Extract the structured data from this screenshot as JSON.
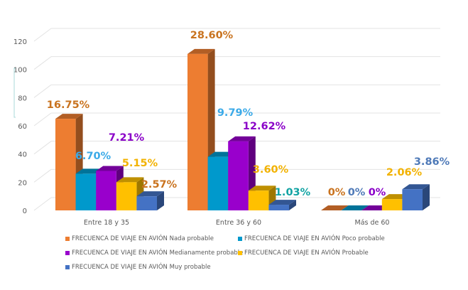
{
  "chart_data": {
    "type": "bar",
    "style": "3d-clustered-column",
    "categories": [
      "Entre 18 y 35",
      "Entre 36 y 60",
      "Más de 60"
    ],
    "ylim": [
      0,
      120
    ],
    "yticks": [
      "0",
      "20",
      "40",
      "60",
      "80",
      "100",
      "120"
    ],
    "grid": true,
    "legend_position": "bottom",
    "series": [
      {
        "name": "FRECUENCA DE VIAJE EN AVIÓN Nada probable",
        "color": "#ED7D31",
        "values": [
          65,
          111,
          0
        ],
        "labels": [
          "16.75%",
          "28.60%",
          "0%"
        ],
        "label_color": "#C9731F"
      },
      {
        "name": "FRECUENCA DE VIAJE EN AVIÓN Poco probable",
        "color": "#0099CC",
        "values": [
          26,
          38,
          0
        ],
        "labels": [
          "6.70%",
          "9.79%",
          "0%"
        ],
        "label_color": "#3BAAE8"
      },
      {
        "name": "FRECUENCA DE VIAJE EN AVIÓN Medianamente probable",
        "color": "#9900CC",
        "values": [
          28,
          49,
          0
        ],
        "labels": [
          "7.21%",
          "12.62%",
          "0%"
        ],
        "label_color": "#8A00C8"
      },
      {
        "name": "FRECUENCA DE VIAJE EN AVIÓN Probable",
        "color": "#FFC000",
        "values": [
          20,
          14,
          8
        ],
        "labels": [
          "5.15%",
          "3.60%",
          "2.06%"
        ],
        "label_color": "#F2B200"
      },
      {
        "name": "FRECUENCA DE VIAJE EN AVIÓN Muy probable",
        "color": "#4472C4",
        "values": [
          10,
          4,
          15
        ],
        "labels": [
          "2.57%",
          "1.03%",
          "3.86%"
        ],
        "label_color": "#4F7AB8"
      }
    ],
    "label_color_overrides": {
      "4-0": "#C9731F",
      "4-1": "#12A3A3",
      "0-2": "#C9731F",
      "1-2": "#4F7AB8"
    }
  }
}
